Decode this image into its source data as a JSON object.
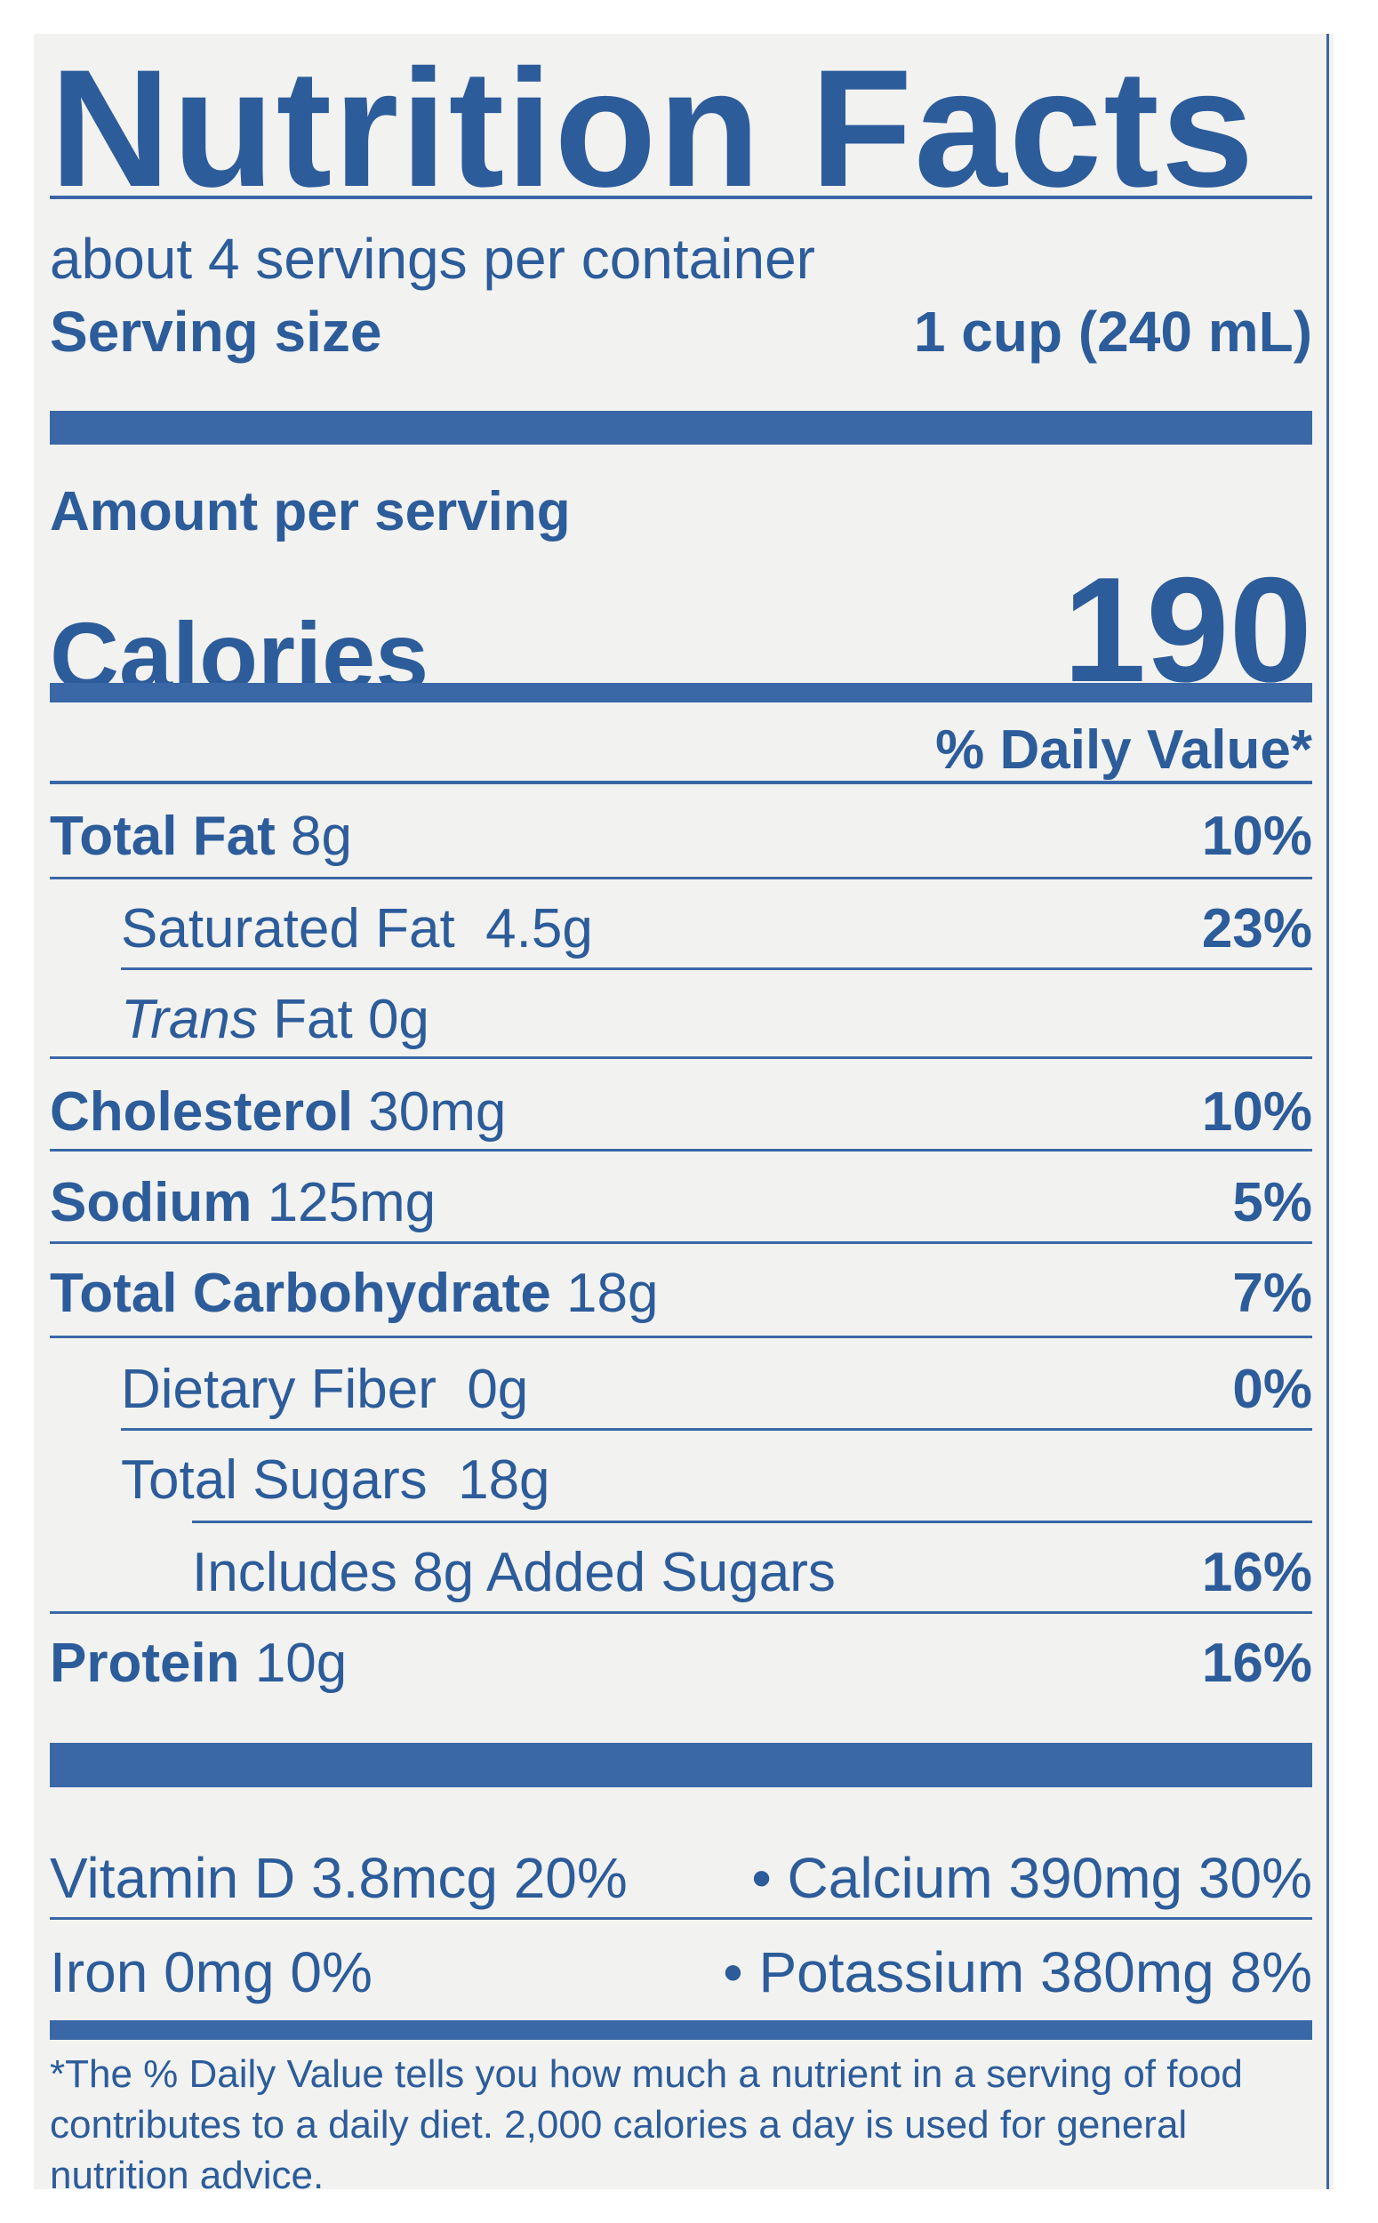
{
  "title": "Nutrition Facts",
  "servings_per_container": "about 4 servings per container",
  "serving_size_label": "Serving size",
  "serving_size_value": "1 cup (240 mL)",
  "amount_per_serving": "Amount per serving",
  "calories_label": "Calories",
  "calories_value": "190",
  "daily_value_header": "% Daily Value*",
  "nutrients": {
    "total_fat": {
      "label": "Total Fat",
      "amount": "8g",
      "dv": "10%"
    },
    "saturated_fat": {
      "label": "Saturated Fat",
      "amount": "4.5g",
      "dv": "23%"
    },
    "trans_fat": {
      "label_italic": "Trans",
      "label": "Fat",
      "amount": "0g"
    },
    "cholesterol": {
      "label": "Cholesterol",
      "amount": "30mg",
      "dv": "10%"
    },
    "sodium": {
      "label": "Sodium",
      "amount": "125mg",
      "dv": "5%"
    },
    "total_carbohydrate": {
      "label": "Total Carbohydrate",
      "amount": "18g",
      "dv": "7%"
    },
    "dietary_fiber": {
      "label": "Dietary Fiber",
      "amount": "0g",
      "dv": "0%"
    },
    "total_sugars": {
      "label": "Total Sugars",
      "amount": "18g"
    },
    "added_sugars": {
      "label": "Includes 8g Added Sugars",
      "dv": "16%"
    },
    "protein": {
      "label": "Protein",
      "amount": "10g",
      "dv": "16%"
    }
  },
  "vitamins": {
    "vitamin_d": "Vitamin D 3.8mcg 20%",
    "calcium": "• Calcium 390mg 30%",
    "iron": "Iron 0mg 0%",
    "potassium": "• Potassium 380mg 8%"
  },
  "footnote": "*The % Daily Value tells you how much a nutrient in a serving of food contributes to a daily diet. 2,000 calories a day is used for general nutrition advice.",
  "colors": {
    "ink": "#2c5c9a",
    "rule": "#3a67a6",
    "background": "#f2f2f0"
  }
}
